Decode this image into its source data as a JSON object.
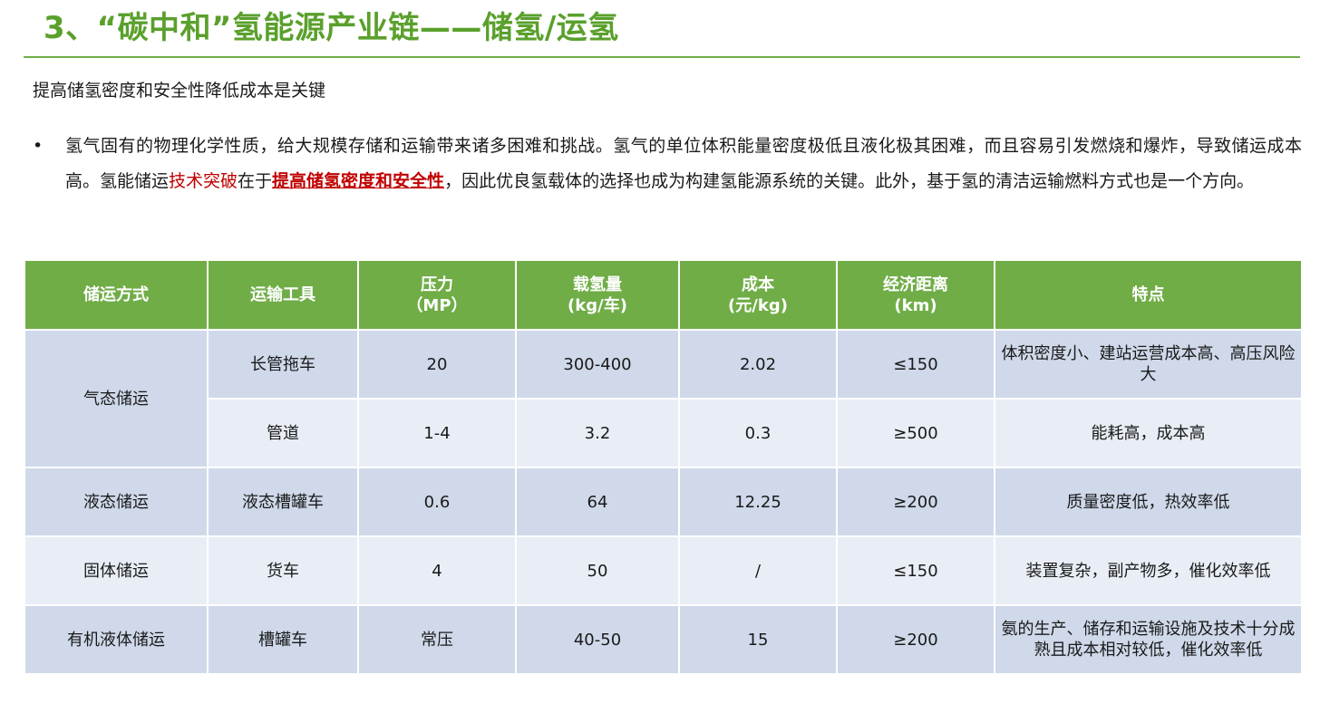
{
  "title": "3、“碳中和”氢能源产业链——储氢/运氢",
  "subtitle": "提高储氢密度和安全性降低成本是关键",
  "bullet": {
    "marker": "•",
    "text_part1": "氢气固有的物理化学性质，给大规模存储和运输带来诸多困难和挑战。氢气的单位体积能量密度极低且液化极其困难，而且容易引发燃烧和爆炸，导致储运成本高。氢能储运",
    "text_red": "技术突破",
    "text_part2": "在于",
    "text_red_bold": "提高储氢密度和安全性",
    "text_part3": "，因此优良氢载体的选择也成为构建氢能源系统的关键。此外，基于氢的清洁运输燃料方式也是一个方向。"
  },
  "table": {
    "headers": {
      "method": "储运方式",
      "tool": "运输工具",
      "pressure": "压力\n（MP）",
      "capacity": "载氢量\n(kg/车)",
      "cost": "成本\n(元/kg)",
      "distance": "经济距离\n(km)",
      "feature": "特点"
    },
    "rows": [
      {
        "method": "气态储运",
        "tool": "长管拖车",
        "pressure": "20",
        "capacity": "300-400",
        "cost": "2.02",
        "distance": "≤150",
        "feature": "体积密度小、建站运营成本高、高压风险大"
      },
      {
        "method": "",
        "tool": "管道",
        "pressure": "1-4",
        "capacity": "3.2",
        "cost": "0.3",
        "distance": "≥500",
        "feature": "能耗高，成本高"
      },
      {
        "method": "液态储运",
        "tool": "液态槽罐车",
        "pressure": "0.6",
        "capacity": "64",
        "cost": "12.25",
        "distance": "≥200",
        "feature": "质量密度低，热效率低"
      },
      {
        "method": "固体储运",
        "tool": "货车",
        "pressure": "4",
        "capacity": "50",
        "cost": "/",
        "distance": "≤150",
        "feature": "装置复杂，副产物多，催化效率低"
      },
      {
        "method": "有机液体储运",
        "tool": "槽罐车",
        "pressure": "常压",
        "capacity": "40-50",
        "cost": "15",
        "distance": "≥200",
        "feature": "氨的生产、储存和运输设施及技术十分成熟且成本相对较低，催化效率低"
      }
    ]
  },
  "colors": {
    "title_green": "#5aa02c",
    "header_green": "#70ad47",
    "row_dark": "#cfd9ea",
    "row_light": "#e9eef6",
    "highlight_red": "#c00000"
  }
}
